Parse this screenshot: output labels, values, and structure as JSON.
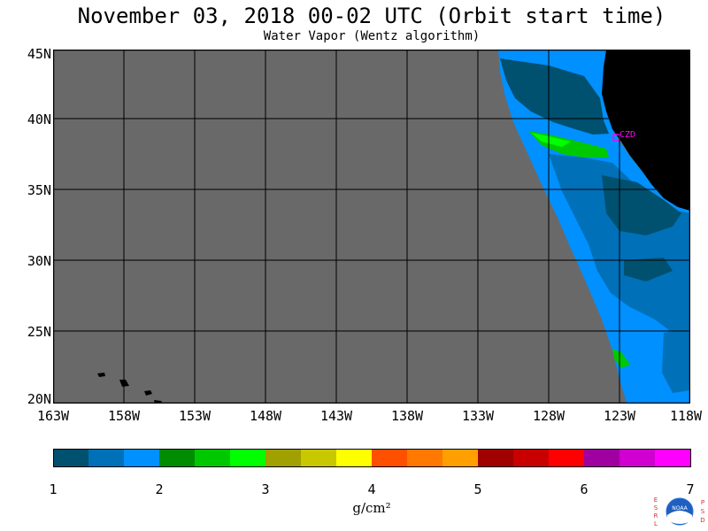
{
  "header": {
    "title": "November 03, 2018  00-02 UTC  (Orbit start time)",
    "subtitle": "Water Vapor (Wentz algorithm)"
  },
  "map": {
    "lat_labels": [
      "45N",
      "40N",
      "35N",
      "30N",
      "25N",
      "20N"
    ],
    "lon_labels": [
      "163W",
      "158W",
      "153W",
      "148W",
      "143W",
      "138W",
      "133W",
      "128W",
      "123W",
      "118W"
    ],
    "station_label": "CZD",
    "colors": {
      "no_data": "#696969",
      "land": "#000000",
      "station": "#ff00ff",
      "grid": "#000000"
    }
  },
  "colorbar": {
    "tick_labels": [
      "1",
      "2",
      "3",
      "4",
      "5",
      "6",
      "7"
    ],
    "units": "g/cm²",
    "colors": [
      "#005070",
      "#0070b8",
      "#0090ff",
      "#008c00",
      "#00c800",
      "#00ff00",
      "#a0a000",
      "#c8c800",
      "#ffff00",
      "#ff5000",
      "#ff7800",
      "#ffa000",
      "#a00000",
      "#c80000",
      "#ff0000",
      "#a000a0",
      "#d000d0",
      "#ff00ff"
    ]
  },
  "logo": {
    "left_letters": "ESRL",
    "right_letters": "PSD",
    "center_text": "NOAA"
  }
}
